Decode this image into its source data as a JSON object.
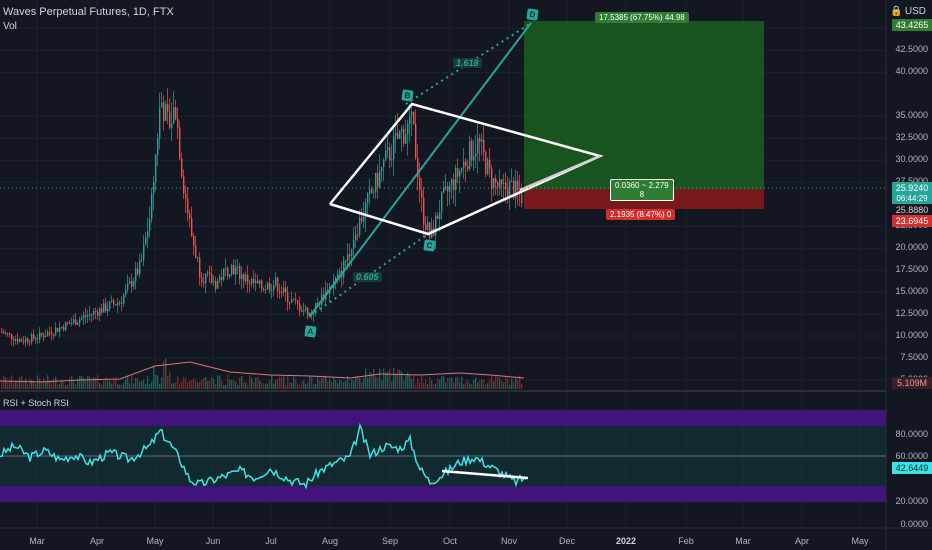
{
  "header": {
    "symbol_title": "Waves Perpetual Futures, 1D, FTX",
    "vol_label": "Vol",
    "currency": "USD"
  },
  "price_axis": {
    "ticks": [
      "45.0000",
      "42.5000",
      "40.0000",
      "35.0000",
      "32.5000",
      "30.0000",
      "27.5000",
      "22.5000",
      "20.0000",
      "17.5000",
      "15.0000",
      "12.5000",
      "10.0000",
      "7.5000",
      "5.0000"
    ],
    "target_price": "43.4265",
    "current_price": "25.9240",
    "countdown": "06:44:29",
    "entry_price": "25.8880",
    "stop_price": "23.6945",
    "volume_value": "5.109M"
  },
  "rsi_pane": {
    "title": "RSI + Stoch RSI",
    "ticks": [
      "80.0000",
      "60.0000",
      "20.0000",
      "0.0000"
    ],
    "current_value": "42.6449"
  },
  "time_axis": {
    "labels": [
      "Mar",
      "Apr",
      "May",
      "Jun",
      "Jul",
      "Aug",
      "Sep",
      "Oct",
      "Nov",
      "Dec",
      "2022",
      "Feb",
      "Mar",
      "Apr",
      "May"
    ]
  },
  "annotations": {
    "profit_label": "17.5385 (67.75%) 44.98",
    "risk_reward_label": "0.0360 ~ 2.279",
    "risk_reward_sub": "8",
    "loss_label": "2.1935 (8.47%) 0",
    "fib_upper": "1.618",
    "fib_lower": "0.605",
    "point_a": "A",
    "point_b": "B",
    "point_c": "C",
    "point_d": "D"
  },
  "colors": {
    "background": "#131722",
    "candle_up": "#26a69a",
    "candle_down": "#ef5350",
    "profit_zone": "#1b5e20",
    "loss_zone": "#7f1d1d",
    "rsi_line": "#38e5e5",
    "rsi_band": "#7b1fa2",
    "target_badge": "#2e7d32",
    "stop_badge": "#d32f2f",
    "current_badge": "#26a69a"
  },
  "chart_data": {
    "type": "candlestick",
    "title": "Waves Perpetual Futures, 1D, FTX",
    "ylim": [
      0,
      46
    ],
    "price_path_approx": [
      {
        "month": "Mar",
        "close": 9.5
      },
      {
        "month": "Apr",
        "close": 12
      },
      {
        "month": "May",
        "close": 37
      },
      {
        "month": "May-late",
        "close": 27
      },
      {
        "month": "Jun",
        "close": 17
      },
      {
        "month": "Jul",
        "close": 15
      },
      {
        "month": "Jul-late",
        "close": 12.5
      },
      {
        "month": "Aug",
        "close": 19
      },
      {
        "month": "Sep",
        "close": 33
      },
      {
        "month": "Sep-late",
        "close": 21
      },
      {
        "month": "Oct",
        "close": 31
      },
      {
        "month": "Nov",
        "close": 25.9
      }
    ],
    "pattern_points": {
      "A": 12.5,
      "B": 35,
      "C": 21,
      "D": 45
    },
    "rsi_range": [
      0,
      100
    ]
  }
}
